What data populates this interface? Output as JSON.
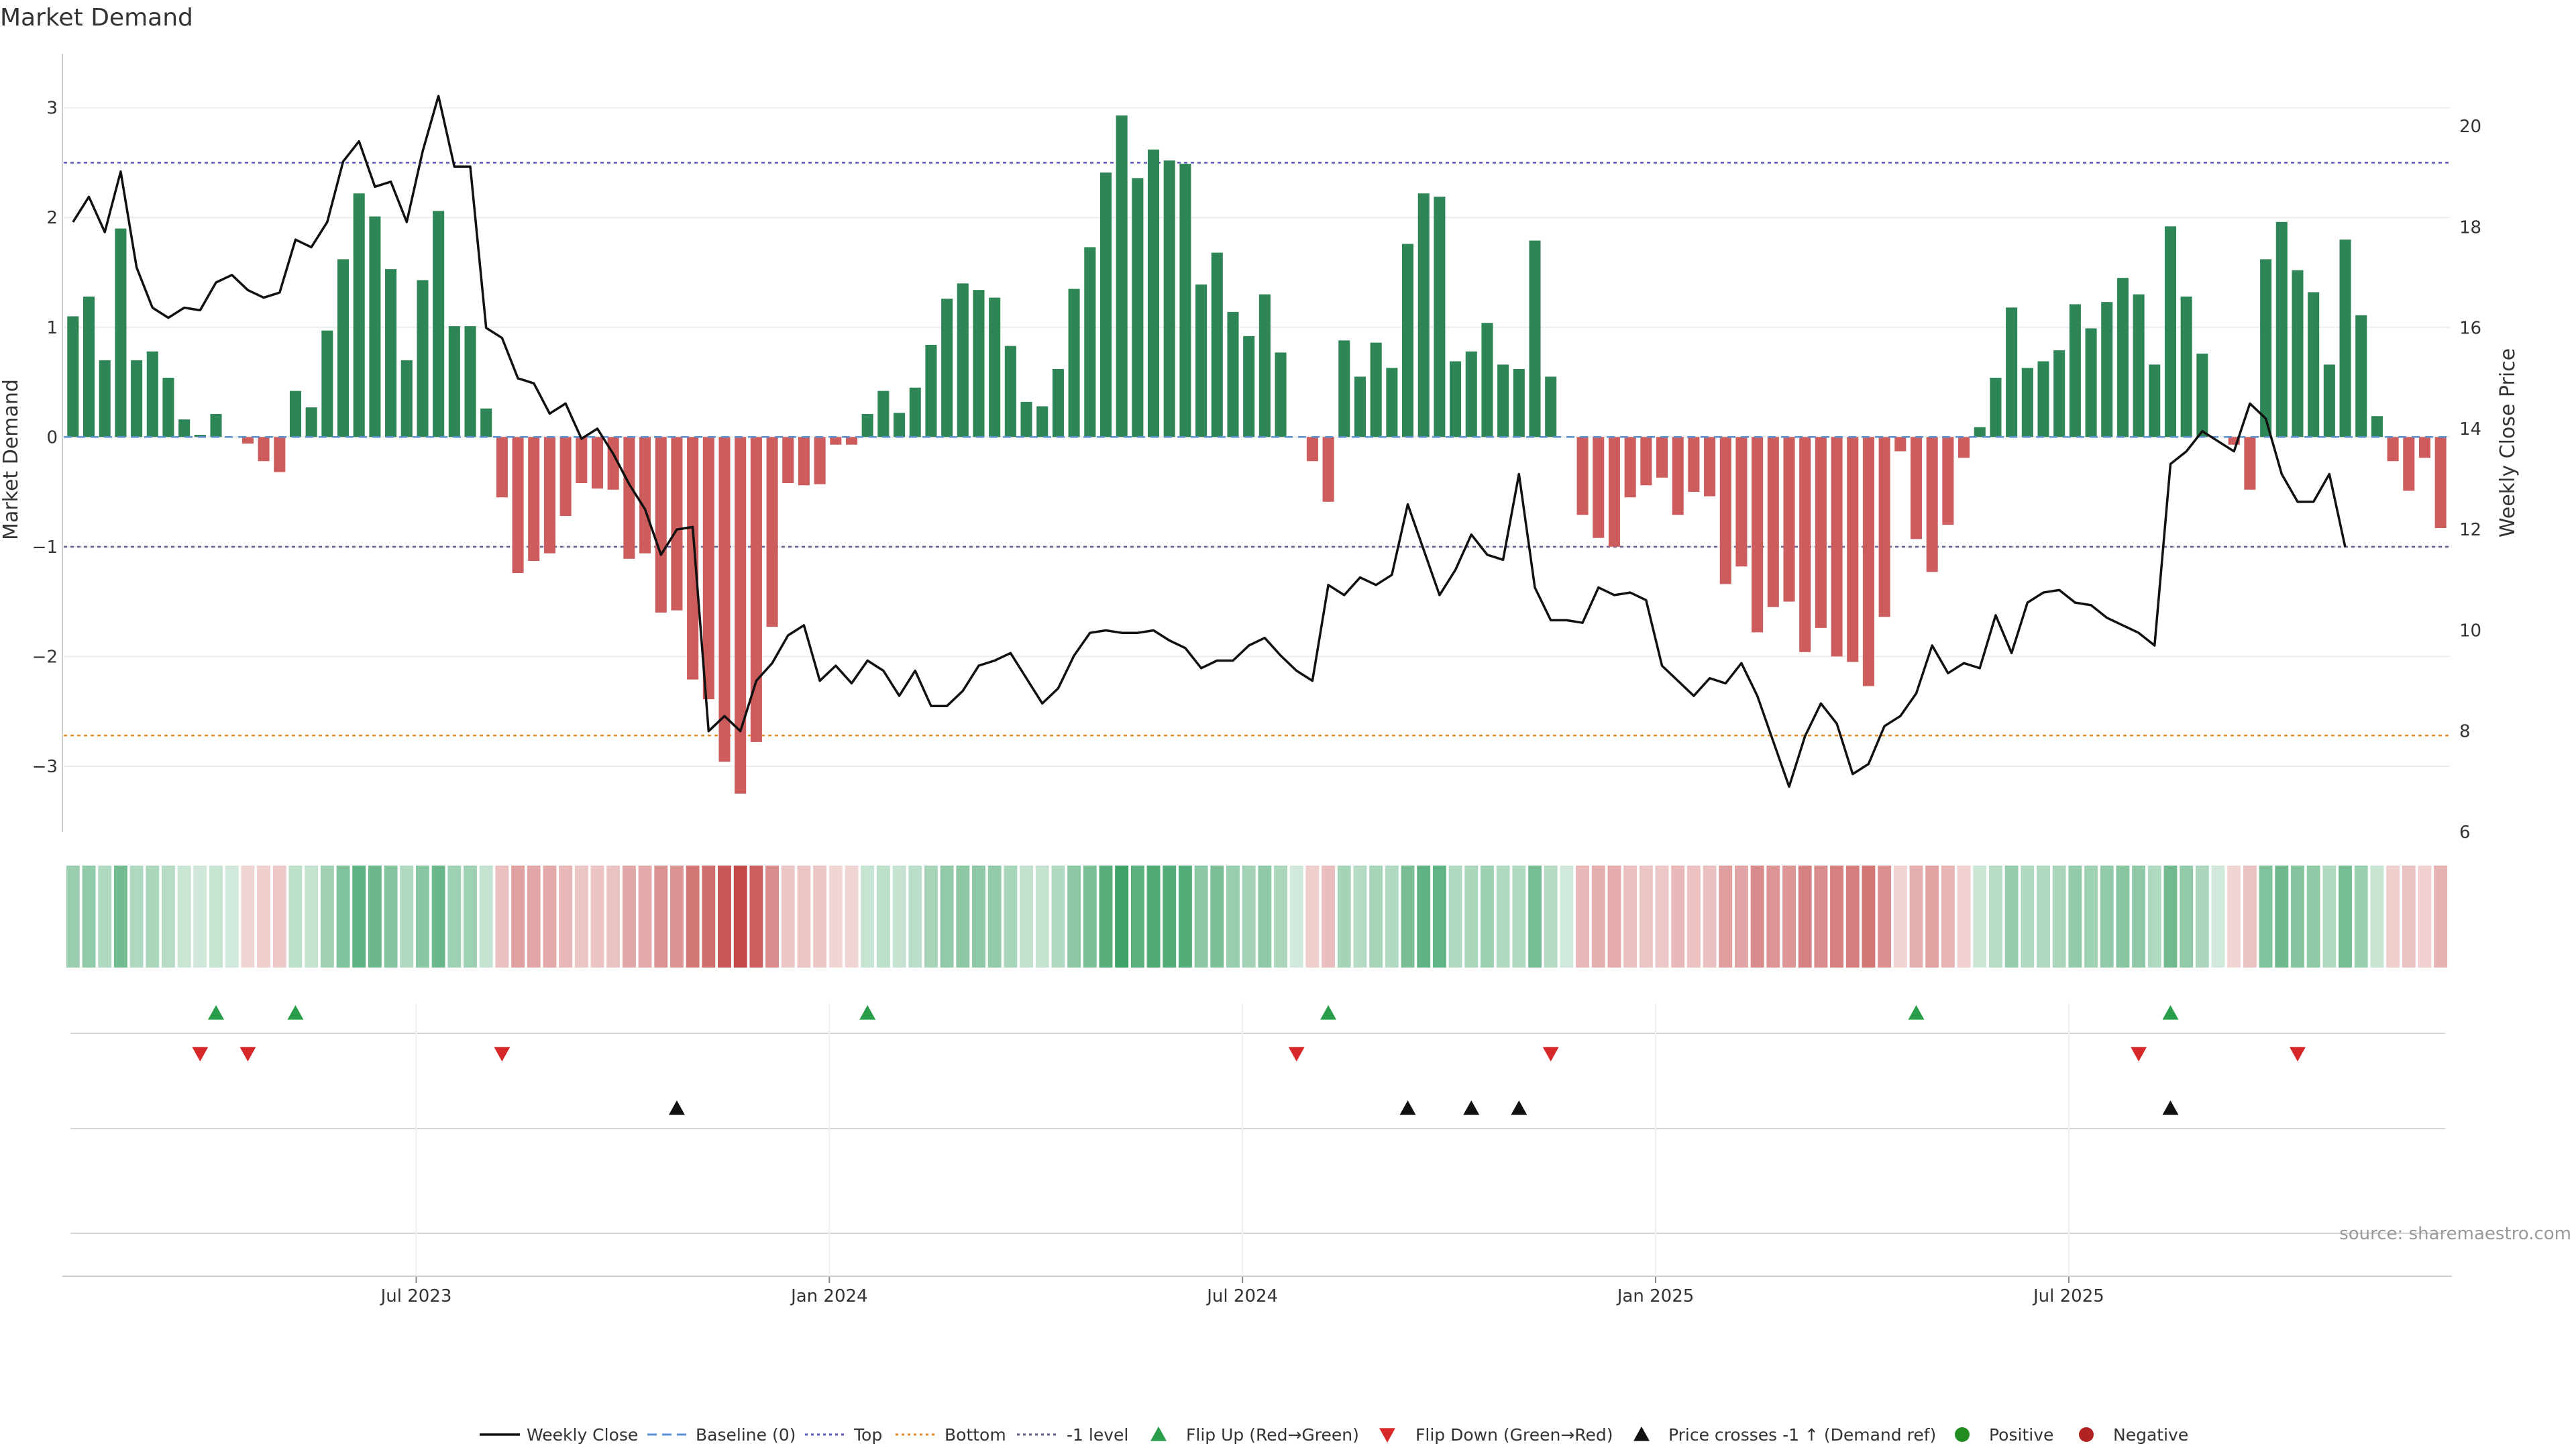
{
  "chart_data": {
    "type": "bar",
    "title": "Market Demand",
    "ylabel": "Market Demand",
    "y2label": "Weekly Close Price",
    "ylim": [
      -3.6,
      3.2
    ],
    "y2lim": [
      6,
      20.8
    ],
    "yticks": [
      "3",
      "2",
      "1",
      "0",
      "−1",
      "−2",
      "−3"
    ],
    "y2ticks": [
      "20",
      "18",
      "16",
      "14",
      "12",
      "10",
      "8",
      "6"
    ],
    "x_tick_labels": [
      "Jul 2023",
      "Jan 2024",
      "Jul 2024",
      "Jan 2025",
      "Jul 2025"
    ],
    "x_tick_weeks": [
      21.6,
      47.6,
      73.6,
      99.6,
      125.6
    ],
    "reference_lines": {
      "top": 2.5,
      "minus_one": -1,
      "bottom": -2.72,
      "baseline": 0
    },
    "series": [
      {
        "name": "Market Demand",
        "values": [
          1.1,
          1.28,
          0.7,
          1.9,
          0.7,
          0.78,
          0.54,
          0.16,
          0.02,
          0.21,
          0.0,
          -0.06,
          -0.22,
          -0.32,
          0.42,
          0.27,
          0.97,
          1.62,
          2.22,
          2.01,
          1.53,
          0.7,
          1.43,
          2.06,
          1.01,
          1.01,
          0.26,
          -0.55,
          -1.24,
          -1.13,
          -1.06,
          -0.72,
          -0.42,
          -0.47,
          -0.48,
          -1.11,
          -1.06,
          -1.6,
          -1.58,
          -2.21,
          -2.39,
          -2.96,
          -3.25,
          -2.78,
          -1.73,
          -0.42,
          -0.44,
          -0.43,
          -0.07,
          -0.07,
          0.21,
          0.42,
          0.22,
          0.45,
          0.84,
          1.26,
          1.4,
          1.34,
          1.27,
          0.83,
          0.32,
          0.28,
          0.62,
          1.35,
          1.73,
          2.41,
          2.93,
          2.36,
          2.62,
          2.52,
          2.49,
          1.39,
          1.68,
          1.14,
          0.92,
          1.3,
          0.77,
          0.0,
          -0.22,
          -0.59,
          0.88,
          0.55,
          0.86,
          0.63,
          1.76,
          2.22,
          2.19,
          0.69,
          0.78,
          1.04,
          0.66,
          0.62,
          1.79,
          0.55,
          0.0,
          -0.71,
          -0.92,
          -1.0,
          -0.55,
          -0.44,
          -0.37,
          -0.71,
          -0.5,
          -0.54,
          -1.34,
          -1.18,
          -1.78,
          -1.55,
          -1.5,
          -1.96,
          -1.74,
          -2.0,
          -2.05,
          -2.27,
          -1.64,
          -0.13,
          -0.93,
          -1.23,
          -0.8,
          -0.19,
          0.09,
          0.54,
          1.18,
          0.63,
          0.69,
          0.79,
          1.21,
          0.99,
          1.23,
          1.45,
          1.3,
          0.66,
          1.92,
          1.28,
          0.76,
          0.0,
          -0.07,
          -0.48,
          1.62,
          1.96,
          1.52,
          1.32,
          0.66,
          1.8,
          1.11,
          0.19,
          -0.22,
          -0.49,
          -0.19,
          -0.83
        ]
      },
      {
        "name": "Weekly Close",
        "values": [
          18.1,
          18.6,
          17.9,
          19.1,
          17.2,
          16.4,
          16.2,
          16.4,
          16.35,
          16.9,
          17.05,
          16.75,
          16.6,
          16.7,
          17.75,
          17.6,
          18.1,
          19.3,
          19.7,
          18.8,
          18.9,
          18.1,
          19.5,
          20.6,
          19.2,
          19.2,
          16.0,
          15.8,
          15.0,
          14.9,
          14.3,
          14.5,
          13.8,
          14.0,
          13.5,
          12.9,
          12.4,
          11.5,
          12.0,
          12.05,
          8.0,
          8.3,
          8.0,
          9.0,
          9.35,
          9.9,
          10.1,
          9.0,
          9.3,
          8.95,
          9.4,
          9.2,
          8.7,
          9.2,
          8.5,
          8.5,
          8.8,
          9.3,
          9.4,
          9.55,
          9.05,
          8.55,
          8.85,
          9.5,
          9.95,
          10.0,
          9.95,
          9.95,
          10.0,
          9.8,
          9.65,
          9.25,
          9.4,
          9.4,
          9.7,
          9.85,
          9.5,
          9.2,
          9.0,
          10.9,
          10.7,
          11.05,
          10.9,
          11.1,
          12.5,
          11.6,
          10.7,
          11.2,
          11.9,
          11.5,
          11.4,
          13.1,
          10.85,
          10.2,
          10.2,
          10.15,
          10.85,
          10.7,
          10.75,
          10.6,
          9.3,
          9.0,
          8.7,
          9.05,
          8.95,
          9.35,
          8.7,
          7.8,
          6.9,
          7.9,
          8.55,
          8.15,
          7.15,
          7.35,
          8.1,
          8.3,
          8.75,
          9.7,
          9.15,
          9.35,
          9.25,
          10.3,
          9.55,
          10.55,
          10.75,
          10.8,
          10.55,
          10.5,
          10.25,
          10.1,
          9.95,
          9.7,
          13.3,
          13.55,
          13.95,
          13.75,
          13.55,
          14.5,
          14.2,
          13.1,
          12.55,
          12.55,
          13.1,
          11.65
        ]
      }
    ],
    "heatmap_strip": "Demand intensity by week (green positive, red negative)",
    "events": {
      "flip_up_weeks": [
        9,
        14,
        50,
        79,
        116,
        132
      ],
      "flip_down_weeks": [
        8,
        11,
        27,
        77,
        93,
        130,
        140
      ],
      "price_cross_weeks": [
        38,
        84,
        88,
        91,
        132
      ]
    },
    "legend": [
      "Weekly Close",
      "Baseline (0)",
      "Top",
      "Bottom",
      "-1 level",
      "Flip Up (Red→Green)",
      "Flip Down (Green→Red)",
      "Price crosses -1 ↑ (Demand ref)",
      "Positive",
      "Negative"
    ],
    "legend_position": "bottom-center",
    "annotation": "source: sharemaestro.com"
  },
  "colors": {
    "positive_bar": "#2e8555",
    "negative_bar": "#cd5c5c",
    "price_line": "#111111",
    "top_line": "#5a5ab8",
    "bottom_line": "#e08a2a",
    "minus_one_line": "#6a5a8a",
    "baseline": "#5b8fd0",
    "flip_up": "#2a9d4a",
    "flip_down": "#d62828",
    "cross": "#111111",
    "positive_dot": "#228b22",
    "negative_dot": "#b22222"
  }
}
